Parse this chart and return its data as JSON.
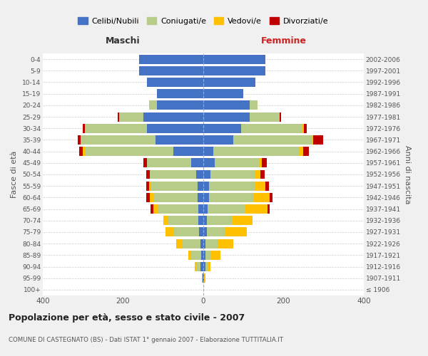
{
  "age_groups": [
    "100+",
    "95-99",
    "90-94",
    "85-89",
    "80-84",
    "75-79",
    "70-74",
    "65-69",
    "60-64",
    "55-59",
    "50-54",
    "45-49",
    "40-44",
    "35-39",
    "30-34",
    "25-29",
    "20-24",
    "15-19",
    "10-14",
    "5-9",
    "0-4"
  ],
  "birth_years": [
    "≤ 1906",
    "1907-1911",
    "1912-1916",
    "1917-1921",
    "1922-1926",
    "1927-1931",
    "1932-1936",
    "1937-1941",
    "1942-1946",
    "1947-1951",
    "1952-1956",
    "1957-1961",
    "1962-1966",
    "1967-1971",
    "1972-1976",
    "1977-1981",
    "1982-1986",
    "1987-1991",
    "1992-1996",
    "1997-2001",
    "2002-2006"
  ],
  "males": {
    "celibi": [
      0,
      2,
      8,
      5,
      8,
      10,
      12,
      12,
      15,
      15,
      18,
      30,
      75,
      120,
      140,
      150,
      115,
      115,
      140,
      160,
      160
    ],
    "coniugati": [
      0,
      2,
      10,
      25,
      45,
      65,
      75,
      100,
      110,
      115,
      115,
      110,
      220,
      185,
      155,
      60,
      20,
      0,
      0,
      0,
      0
    ],
    "vedovi": [
      0,
      0,
      3,
      8,
      15,
      20,
      12,
      12,
      8,
      5,
      0,
      0,
      5,
      0,
      0,
      0,
      0,
      0,
      0,
      0,
      0
    ],
    "divorziati": [
      0,
      0,
      0,
      0,
      0,
      0,
      0,
      8,
      10,
      8,
      10,
      10,
      10,
      8,
      5,
      3,
      0,
      0,
      0,
      0,
      0
    ]
  },
  "females": {
    "nubili": [
      0,
      2,
      5,
      5,
      5,
      8,
      8,
      10,
      15,
      15,
      18,
      28,
      25,
      75,
      95,
      115,
      115,
      100,
      130,
      155,
      155
    ],
    "coniugate": [
      0,
      0,
      5,
      12,
      30,
      45,
      65,
      95,
      110,
      115,
      110,
      110,
      215,
      195,
      150,
      75,
      20,
      0,
      0,
      0,
      0
    ],
    "vedove": [
      0,
      3,
      8,
      25,
      40,
      55,
      50,
      55,
      40,
      25,
      15,
      8,
      8,
      3,
      5,
      0,
      0,
      0,
      0,
      0,
      0
    ],
    "divorziate": [
      0,
      0,
      0,
      0,
      0,
      0,
      0,
      5,
      8,
      8,
      10,
      12,
      15,
      25,
      8,
      3,
      0,
      0,
      0,
      0,
      0
    ]
  },
  "colors": {
    "celibi": "#4472c4",
    "coniugati": "#b8cc8a",
    "vedovi": "#ffc000",
    "divorziati": "#c00000"
  },
  "xlim": 400,
  "title": "Popolazione per età, sesso e stato civile - 2007",
  "subtitle": "COMUNE DI CASTEGNATO (BS) - Dati ISTAT 1° gennaio 2007 - Elaborazione TUTTITALIA.IT",
  "xlabel_left": "Maschi",
  "xlabel_right": "Femmine",
  "ylabel_left": "Fasce di età",
  "ylabel_right": "Anni di nascita",
  "legend_labels": [
    "Celibi/Nubili",
    "Coniugati/e",
    "Vedovi/e",
    "Divorziati/e"
  ],
  "bg_color": "#f0f0f0",
  "plot_bg": "#ffffff"
}
